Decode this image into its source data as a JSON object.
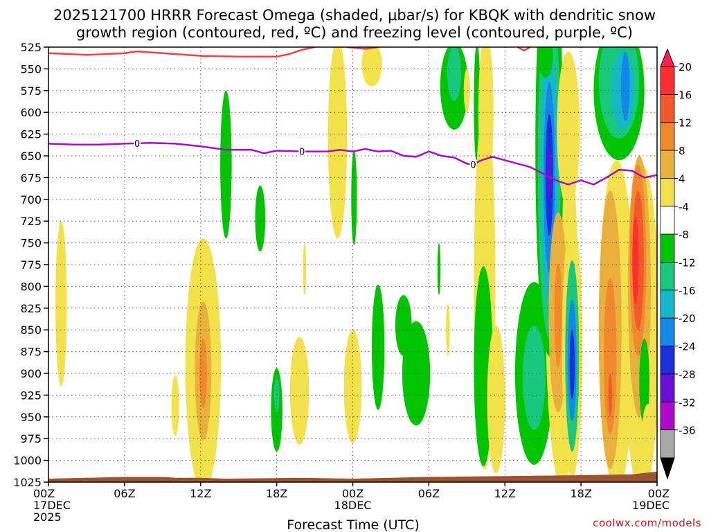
{
  "chart_data": {
    "type": "heatmap",
    "title_line1": "2025121700 HRRR Forecast Omega (shaded, μbar/s) for KBQK with dendritic snow",
    "title_line2": "growth region (contoured, red, ºC) and freezing level (contoured, purple, ºC)",
    "xlabel": "Forecast Time (UTC)",
    "credit": "coolwx.com/models",
    "x_unit": "hours since 2025-12-17 00Z",
    "xlim": [
      0,
      48
    ],
    "y_unit": "hPa",
    "ylim": [
      525,
      1025
    ],
    "y_ticks": [
      525,
      550,
      575,
      600,
      625,
      650,
      675,
      700,
      725,
      750,
      775,
      800,
      825,
      850,
      875,
      900,
      925,
      950,
      975,
      1000,
      1025
    ],
    "x_ticks": [
      {
        "hour": 0,
        "line1": "00Z",
        "line2": "17DEC",
        "line3": "2025"
      },
      {
        "hour": 6,
        "line1": "06Z",
        "line2": "",
        "line3": ""
      },
      {
        "hour": 12,
        "line1": "12Z",
        "line2": "",
        "line3": ""
      },
      {
        "hour": 18,
        "line1": "18Z",
        "line2": "",
        "line3": ""
      },
      {
        "hour": 24,
        "line1": "00Z",
        "line2": "18DEC",
        "line3": ""
      },
      {
        "hour": 30,
        "line1": "06Z",
        "line2": "",
        "line3": ""
      },
      {
        "hour": 36,
        "line1": "12Z",
        "line2": "",
        "line3": ""
      },
      {
        "hour": 42,
        "line1": "18Z",
        "line2": "",
        "line3": ""
      },
      {
        "hour": 48,
        "line1": "00Z",
        "line2": "19DEC",
        "line3": ""
      }
    ],
    "colorbar": {
      "levels": [
        20,
        16,
        12,
        8,
        4,
        -4,
        -8,
        -12,
        -16,
        -20,
        -24,
        -28,
        -32,
        -36
      ],
      "colors": [
        "#ff1f5a",
        "#ff2f2f",
        "#f3592a",
        "#f28a2d",
        "#eab03c",
        "#f2e14a",
        "#ffffff",
        "#00c400",
        "#18c87c",
        "#15b8c8",
        "#1488ea",
        "#1b2fe0",
        "#6a10d4",
        "#b00ac8",
        "#a8a8a8",
        "#000000"
      ]
    },
    "freezing_level": {
      "color": "#a010c8",
      "label": "0",
      "label_hours": [
        7,
        20,
        33.5
      ],
      "points": [
        [
          0,
          636
        ],
        [
          2,
          637
        ],
        [
          4,
          637
        ],
        [
          6,
          636
        ],
        [
          8,
          635
        ],
        [
          10,
          636
        ],
        [
          12,
          639
        ],
        [
          14,
          643
        ],
        [
          16,
          643
        ],
        [
          17,
          647
        ],
        [
          18,
          644
        ],
        [
          20,
          645
        ],
        [
          22,
          645
        ],
        [
          23,
          643
        ],
        [
          24,
          645
        ],
        [
          25,
          642
        ],
        [
          26,
          645
        ],
        [
          27,
          644
        ],
        [
          28,
          650
        ],
        [
          29,
          651
        ],
        [
          30,
          645
        ],
        [
          31,
          650
        ],
        [
          32,
          652
        ],
        [
          33,
          659
        ],
        [
          33.5,
          660
        ],
        [
          34,
          656
        ],
        [
          35,
          651
        ],
        [
          36,
          655
        ],
        [
          38,
          663
        ],
        [
          40,
          678
        ],
        [
          41,
          683
        ],
        [
          42,
          678
        ],
        [
          43,
          683
        ],
        [
          44,
          675
        ],
        [
          45,
          666
        ],
        [
          46,
          667
        ],
        [
          47,
          675
        ],
        [
          48,
          672
        ]
      ]
    },
    "dgz_boundary": {
      "color": "#f04040",
      "points": [
        [
          0,
          532
        ],
        [
          3,
          534
        ],
        [
          6,
          532
        ],
        [
          7,
          530
        ],
        [
          9,
          532
        ],
        [
          12,
          535
        ],
        [
          15,
          536
        ],
        [
          18,
          536
        ],
        [
          19,
          533
        ],
        [
          20,
          528
        ],
        [
          21,
          525
        ]
      ],
      "points_upper": [
        [
          23.5,
          525
        ],
        [
          25,
          527
        ],
        [
          26,
          525
        ]
      ],
      "points_right": [
        [
          37,
          525
        ],
        [
          37.5,
          529
        ],
        [
          38,
          525
        ]
      ]
    },
    "omega_regions": [
      {
        "level": "4",
        "center": [
          1.0,
          820
        ],
        "radius": [
          0.45,
          95
        ]
      },
      {
        "level": "4",
        "center": [
          12.2,
          890
        ],
        "radius": [
          1.4,
          145
        ]
      },
      {
        "level": "8",
        "center": [
          12.2,
          897
        ],
        "radius": [
          0.65,
          80
        ]
      },
      {
        "level": "12",
        "center": [
          12.2,
          900
        ],
        "radius": [
          0.3,
          40
        ]
      },
      {
        "level": "4",
        "center": [
          10.0,
          937
        ],
        "radius": [
          0.3,
          35
        ]
      },
      {
        "level": "-8",
        "center": [
          14.0,
          660
        ],
        "radius": [
          0.45,
          85
        ]
      },
      {
        "level": "-8",
        "center": [
          16.7,
          722
        ],
        "radius": [
          0.4,
          38
        ]
      },
      {
        "level": "-8",
        "center": [
          18.0,
          942
        ],
        "radius": [
          0.45,
          48
        ]
      },
      {
        "level": "-12",
        "center": [
          18.0,
          925
        ],
        "radius": [
          0.2,
          20
        ]
      },
      {
        "level": "4",
        "center": [
          19.8,
          920
        ],
        "radius": [
          0.75,
          62
        ]
      },
      {
        "level": "4",
        "center": [
          20.2,
          780
        ],
        "radius": [
          0.12,
          30
        ]
      },
      {
        "level": "4",
        "center": [
          22.8,
          630
        ],
        "radius": [
          0.75,
          115
        ]
      },
      {
        "level": "4",
        "center": [
          24.0,
          915
        ],
        "radius": [
          0.7,
          65
        ]
      },
      {
        "level": "-8",
        "center": [
          24.1,
          698
        ],
        "radius": [
          0.22,
          55
        ]
      },
      {
        "level": "-8",
        "center": [
          26.0,
          870
        ],
        "radius": [
          0.5,
          72
        ]
      },
      {
        "level": "4",
        "center": [
          25.5,
          545
        ],
        "radius": [
          0.8,
          25
        ]
      },
      {
        "level": "-8",
        "center": [
          29.0,
          900
        ],
        "radius": [
          1.1,
          60
        ]
      },
      {
        "level": "-8",
        "center": [
          28.0,
          845
        ],
        "radius": [
          0.65,
          35
        ]
      },
      {
        "level": "-8",
        "center": [
          30.8,
          780
        ],
        "radius": [
          0.12,
          30
        ]
      },
      {
        "level": "-8",
        "center": [
          33.8,
          720
        ],
        "radius": [
          0.18,
          30
        ]
      },
      {
        "level": "4",
        "center": [
          31.5,
          850
        ],
        "radius": [
          0.15,
          30
        ]
      },
      {
        "level": "-8",
        "center": [
          32.0,
          570
        ],
        "radius": [
          1.1,
          50
        ]
      },
      {
        "level": "-12",
        "center": [
          32.0,
          555
        ],
        "radius": [
          0.55,
          32
        ]
      },
      {
        "level": "4",
        "center": [
          33.0,
          575
        ],
        "radius": [
          0.25,
          25
        ]
      },
      {
        "level": "-8",
        "center": [
          33.8,
          590
        ],
        "radius": [
          0.25,
          70
        ]
      },
      {
        "level": "4",
        "center": [
          34.4,
          800
        ],
        "radius": [
          0.85,
          210
        ]
      },
      {
        "level": "4",
        "center": [
          34.5,
          600
        ],
        "radius": [
          0.6,
          90
        ]
      },
      {
        "level": "-8",
        "center": [
          34.3,
          892
        ],
        "radius": [
          0.75,
          115
        ]
      },
      {
        "level": "4",
        "center": [
          35.3,
          930
        ],
        "radius": [
          0.7,
          85
        ]
      },
      {
        "level": "-8",
        "center": [
          38.3,
          900
        ],
        "radius": [
          1.5,
          105
        ]
      },
      {
        "level": "-12",
        "center": [
          38.3,
          905
        ],
        "radius": [
          0.9,
          60
        ]
      },
      {
        "level": "4",
        "center": [
          40.5,
          820
        ],
        "radius": [
          1.3,
          210
        ]
      },
      {
        "level": "-8",
        "center": [
          39.5,
          640
        ],
        "radius": [
          1.1,
          240
        ]
      },
      {
        "level": "-12",
        "center": [
          39.5,
          660
        ],
        "radius": [
          0.9,
          200
        ]
      },
      {
        "level": "-16",
        "center": [
          39.5,
          670
        ],
        "radius": [
          0.7,
          150
        ]
      },
      {
        "level": "-20",
        "center": [
          39.5,
          675
        ],
        "radius": [
          0.45,
          110
        ]
      },
      {
        "level": "-24",
        "center": [
          39.5,
          672
        ],
        "radius": [
          0.3,
          70
        ]
      },
      {
        "level": "-28",
        "center": [
          39.5,
          670
        ],
        "radius": [
          0.15,
          30
        ]
      },
      {
        "level": "4",
        "center": [
          41.0,
          620
        ],
        "radius": [
          0.9,
          90
        ]
      },
      {
        "level": "8",
        "center": [
          40.2,
          830
        ],
        "radius": [
          0.75,
          115
        ]
      },
      {
        "level": "12",
        "center": [
          40.2,
          833
        ],
        "radius": [
          0.3,
          60
        ]
      },
      {
        "level": "-8",
        "center": [
          39.2,
          535
        ],
        "radius": [
          0.6,
          25
        ]
      },
      {
        "level": "4",
        "center": [
          41.3,
          870
        ],
        "radius": [
          0.8,
          150
        ]
      },
      {
        "level": "-12",
        "center": [
          41.3,
          880
        ],
        "radius": [
          0.55,
          110
        ]
      },
      {
        "level": "-20",
        "center": [
          41.3,
          885
        ],
        "radius": [
          0.35,
          70
        ]
      },
      {
        "level": "-24",
        "center": [
          41.3,
          890
        ],
        "radius": [
          0.2,
          40
        ]
      },
      {
        "level": "4",
        "center": [
          44.8,
          845
        ],
        "radius": [
          1.4,
          190
        ]
      },
      {
        "level": "8",
        "center": [
          44.3,
          850
        ],
        "radius": [
          0.9,
          160
        ]
      },
      {
        "level": "12",
        "center": [
          44.3,
          880
        ],
        "radius": [
          0.5,
          90
        ]
      },
      {
        "level": "16",
        "center": [
          44.3,
          925
        ],
        "radius": [
          0.15,
          25
        ]
      },
      {
        "level": "-8",
        "center": [
          45.0,
          575
        ],
        "radius": [
          2.0,
          80
        ]
      },
      {
        "level": "-12",
        "center": [
          45.0,
          565
        ],
        "radius": [
          1.6,
          65
        ]
      },
      {
        "level": "-16",
        "center": [
          45.3,
          575
        ],
        "radius": [
          0.9,
          45
        ]
      },
      {
        "level": "-20",
        "center": [
          45.5,
          570
        ],
        "radius": [
          0.35,
          40
        ]
      },
      {
        "level": "4",
        "center": [
          46.8,
          850
        ],
        "radius": [
          1.4,
          190
        ]
      },
      {
        "level": "8",
        "center": [
          46.6,
          800
        ],
        "radius": [
          0.9,
          150
        ]
      },
      {
        "level": "12",
        "center": [
          46.5,
          770
        ],
        "radius": [
          0.65,
          110
        ]
      },
      {
        "level": "16",
        "center": [
          46.5,
          770
        ],
        "radius": [
          0.45,
          80
        ]
      },
      {
        "level": "20",
        "center": [
          46.3,
          770
        ],
        "radius": [
          0.25,
          50
        ]
      },
      {
        "level": "-8",
        "center": [
          47.0,
          910
        ],
        "radius": [
          0.4,
          50
        ]
      },
      {
        "level": "4",
        "center": [
          47.3,
          970
        ],
        "radius": [
          0.5,
          35
        ]
      }
    ],
    "terrain": {
      "color": "#9c5430",
      "points": [
        [
          0,
          1021
        ],
        [
          6,
          1019
        ],
        [
          9,
          1019
        ],
        [
          10,
          1020
        ],
        [
          12,
          1020
        ],
        [
          14,
          1021
        ],
        [
          20,
          1020
        ],
        [
          24,
          1021
        ],
        [
          30,
          1019
        ],
        [
          36,
          1018
        ],
        [
          42,
          1017
        ],
        [
          46,
          1016
        ],
        [
          48,
          1013
        ]
      ]
    }
  }
}
